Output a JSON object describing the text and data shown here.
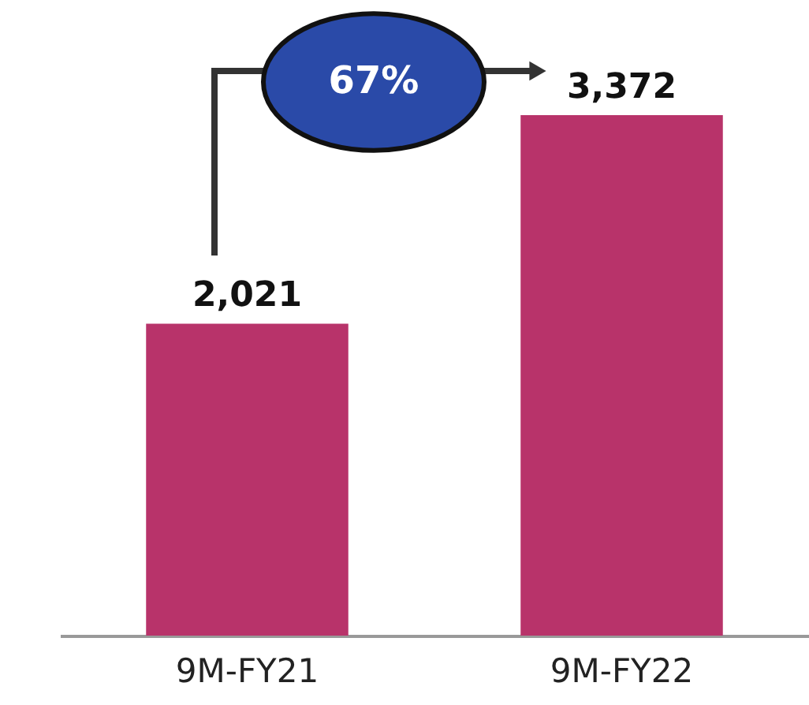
{
  "chart_data": {
    "type": "bar",
    "categories": [
      "9M-FY21",
      "9M-FY22"
    ],
    "values": [
      2021,
      3372
    ],
    "color": "#b8336a",
    "value_labels": [
      "2,021",
      "3,372"
    ],
    "annotations": [
      "67%"
    ]
  }
}
